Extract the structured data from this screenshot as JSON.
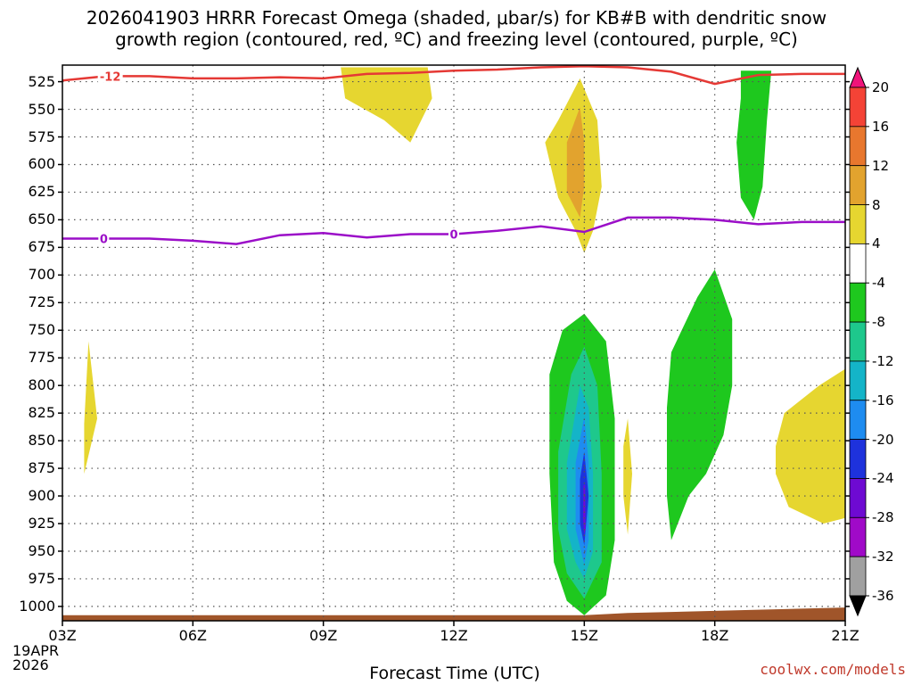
{
  "chart_data": {
    "type": "heatmap",
    "title_line1": "2026041903 HRRR Forecast Omega (shaded, μbar/s) for KB#B with dendritic snow",
    "title_line2": "growth region (contoured, red, ºC) and freezing level (contoured, purple, ºC)",
    "xlabel": "Forecast Time (UTC)",
    "ylabel": "",
    "x_ticks": [
      "03Z",
      "06Z",
      "09Z",
      "12Z",
      "15Z",
      "18Z",
      "21Z"
    ],
    "x_range_hours": [
      3,
      21
    ],
    "date_label": [
      "19APR",
      "2026"
    ],
    "y_ticks": [
      525,
      550,
      575,
      600,
      625,
      650,
      675,
      700,
      725,
      750,
      775,
      800,
      825,
      850,
      875,
      900,
      925,
      950,
      975,
      1000
    ],
    "y_range_hPa": [
      510,
      1013
    ],
    "colorbar": {
      "ticks": [
        "20",
        "16",
        "12",
        "8",
        "4",
        "-4",
        "-8",
        "-12",
        "-16",
        "-20",
        "-24",
        "-28",
        "-32",
        "-36"
      ],
      "colors": [
        "#f0147a",
        "#f44336",
        "#e8772e",
        "#e2a32e",
        "#e6d630",
        "#ffffff",
        "#1ec81e",
        "#1ec88c",
        "#14b4c8",
        "#1e8cf0",
        "#1e32dc",
        "#6e0ad2",
        "#a00ac8",
        "#a0a0a0",
        "#000000"
      ]
    },
    "freezing_level": {
      "label": "0",
      "color": "#9b0ec8",
      "points": [
        [
          3,
          667
        ],
        [
          5,
          667
        ],
        [
          6,
          669
        ],
        [
          7,
          672
        ],
        [
          8,
          664
        ],
        [
          9,
          662
        ],
        [
          10,
          666
        ],
        [
          11,
          663
        ],
        [
          12,
          663
        ],
        [
          13,
          660
        ],
        [
          14,
          656
        ],
        [
          15,
          661
        ],
        [
          16,
          648
        ],
        [
          17,
          648
        ],
        [
          18,
          650
        ],
        [
          19,
          654
        ],
        [
          20,
          652
        ],
        [
          21,
          652
        ]
      ]
    },
    "dgz_top": {
      "label": "-12",
      "color": "#e53935",
      "points": [
        [
          3,
          524
        ],
        [
          4,
          520
        ],
        [
          5,
          520
        ],
        [
          6,
          522
        ],
        [
          7,
          522
        ],
        [
          8,
          521
        ],
        [
          9,
          522
        ],
        [
          10,
          518
        ],
        [
          11,
          517
        ],
        [
          12,
          515
        ],
        [
          13,
          514
        ],
        [
          14,
          512
        ],
        [
          15,
          511
        ],
        [
          16,
          512
        ],
        [
          17,
          516
        ],
        [
          18,
          527
        ],
        [
          19,
          519
        ],
        [
          20,
          518
        ],
        [
          21,
          518
        ]
      ]
    },
    "omega_regions": [
      {
        "level": "4",
        "color": "#e6d630",
        "points": [
          [
            3.5,
            835
          ],
          [
            3.6,
            760
          ],
          [
            3.8,
            830
          ],
          [
            3.5,
            880
          ]
        ]
      },
      {
        "level": "4",
        "color": "#e6d630",
        "points": [
          [
            9.4,
            512
          ],
          [
            11.4,
            512
          ],
          [
            11.5,
            540
          ],
          [
            11,
            580
          ],
          [
            10.4,
            560
          ],
          [
            9.5,
            540
          ]
        ]
      },
      {
        "level": "4",
        "color": "#e6d630",
        "points": [
          [
            14.4,
            560
          ],
          [
            14.9,
            522
          ],
          [
            15.3,
            560
          ],
          [
            15.4,
            620
          ],
          [
            15.2,
            660
          ],
          [
            15.0,
            680
          ],
          [
            14.8,
            660
          ],
          [
            14.4,
            630
          ],
          [
            14.1,
            580
          ]
        ]
      },
      {
        "level": "8",
        "color": "#e2a32e",
        "points": [
          [
            14.6,
            580
          ],
          [
            14.9,
            548
          ],
          [
            15.0,
            580
          ],
          [
            15.0,
            620
          ],
          [
            14.9,
            648
          ],
          [
            14.6,
            625
          ],
          [
            14.6,
            600
          ]
        ]
      },
      {
        "level": "4",
        "color": "#e6d630",
        "points": [
          [
            15.9,
            855
          ],
          [
            16.0,
            830
          ],
          [
            16.1,
            880
          ],
          [
            16.0,
            935
          ],
          [
            15.9,
            900
          ]
        ]
      },
      {
        "level": "4",
        "color": "#e6d630",
        "points": [
          [
            19.4,
            855
          ],
          [
            19.6,
            825
          ],
          [
            20.4,
            800
          ],
          [
            21,
            785
          ],
          [
            21,
            920
          ],
          [
            20.5,
            925
          ],
          [
            19.7,
            910
          ],
          [
            19.4,
            880
          ]
        ]
      },
      {
        "level": "-4",
        "color": "#1ec81e",
        "points": [
          [
            18.6,
            515
          ],
          [
            19.3,
            515
          ],
          [
            19.2,
            560
          ],
          [
            19.1,
            620
          ],
          [
            18.9,
            650
          ],
          [
            18.6,
            630
          ],
          [
            18.5,
            580
          ],
          [
            18.6,
            540
          ]
        ]
      },
      {
        "level": "-4",
        "color": "#1ec81e",
        "points": [
          [
            17.0,
            770
          ],
          [
            17.6,
            720
          ],
          [
            18.0,
            695
          ],
          [
            18.4,
            740
          ],
          [
            18.4,
            800
          ],
          [
            18.2,
            845
          ],
          [
            17.8,
            880
          ],
          [
            17.4,
            900
          ],
          [
            17.0,
            940
          ],
          [
            16.9,
            900
          ],
          [
            16.9,
            820
          ]
        ]
      },
      {
        "level": "-4",
        "color": "#1ec81e",
        "points": [
          [
            14.2,
            790
          ],
          [
            14.5,
            750
          ],
          [
            15.0,
            735
          ],
          [
            15.5,
            760
          ],
          [
            15.7,
            830
          ],
          [
            15.7,
            940
          ],
          [
            15.5,
            990
          ],
          [
            15.0,
            1008
          ],
          [
            14.6,
            995
          ],
          [
            14.3,
            960
          ],
          [
            14.2,
            880
          ]
        ]
      },
      {
        "level": "-8",
        "color": "#1ec88c",
        "points": [
          [
            14.4,
            860
          ],
          [
            14.7,
            790
          ],
          [
            15.0,
            765
          ],
          [
            15.3,
            800
          ],
          [
            15.4,
            880
          ],
          [
            15.4,
            960
          ],
          [
            15.0,
            993
          ],
          [
            14.6,
            970
          ],
          [
            14.4,
            930
          ]
        ]
      },
      {
        "level": "-12",
        "color": "#14b4c8",
        "points": [
          [
            14.6,
            870
          ],
          [
            14.9,
            800
          ],
          [
            15.1,
            820
          ],
          [
            15.2,
            880
          ],
          [
            15.2,
            950
          ],
          [
            15.0,
            975
          ],
          [
            14.8,
            960
          ],
          [
            14.6,
            930
          ]
        ]
      },
      {
        "level": "-16",
        "color": "#1e8cf0",
        "points": [
          [
            14.8,
            870
          ],
          [
            15.0,
            828
          ],
          [
            15.1,
            870
          ],
          [
            15.1,
            940
          ],
          [
            15.0,
            962
          ],
          [
            14.8,
            930
          ]
        ]
      },
      {
        "level": "-20",
        "color": "#1e32dc",
        "points": [
          [
            14.9,
            885
          ],
          [
            15.0,
            860
          ],
          [
            15.1,
            900
          ],
          [
            15.0,
            945
          ],
          [
            14.9,
            925
          ]
        ]
      },
      {
        "level": "-24",
        "color": "#6e0ad2",
        "points": [
          [
            14.98,
            890
          ],
          [
            15.02,
            890
          ],
          [
            15.03,
            930
          ],
          [
            15.0,
            935
          ],
          [
            14.97,
            920
          ]
        ]
      }
    ],
    "terrain": {
      "color": "#a0552a",
      "points": [
        [
          3,
          1008
        ],
        [
          15,
          1008
        ],
        [
          16,
          1006
        ],
        [
          17,
          1005
        ],
        [
          18,
          1004
        ],
        [
          19,
          1003
        ],
        [
          20,
          1002
        ],
        [
          21,
          1001
        ]
      ]
    }
  },
  "credit": "coolwx.com/models"
}
